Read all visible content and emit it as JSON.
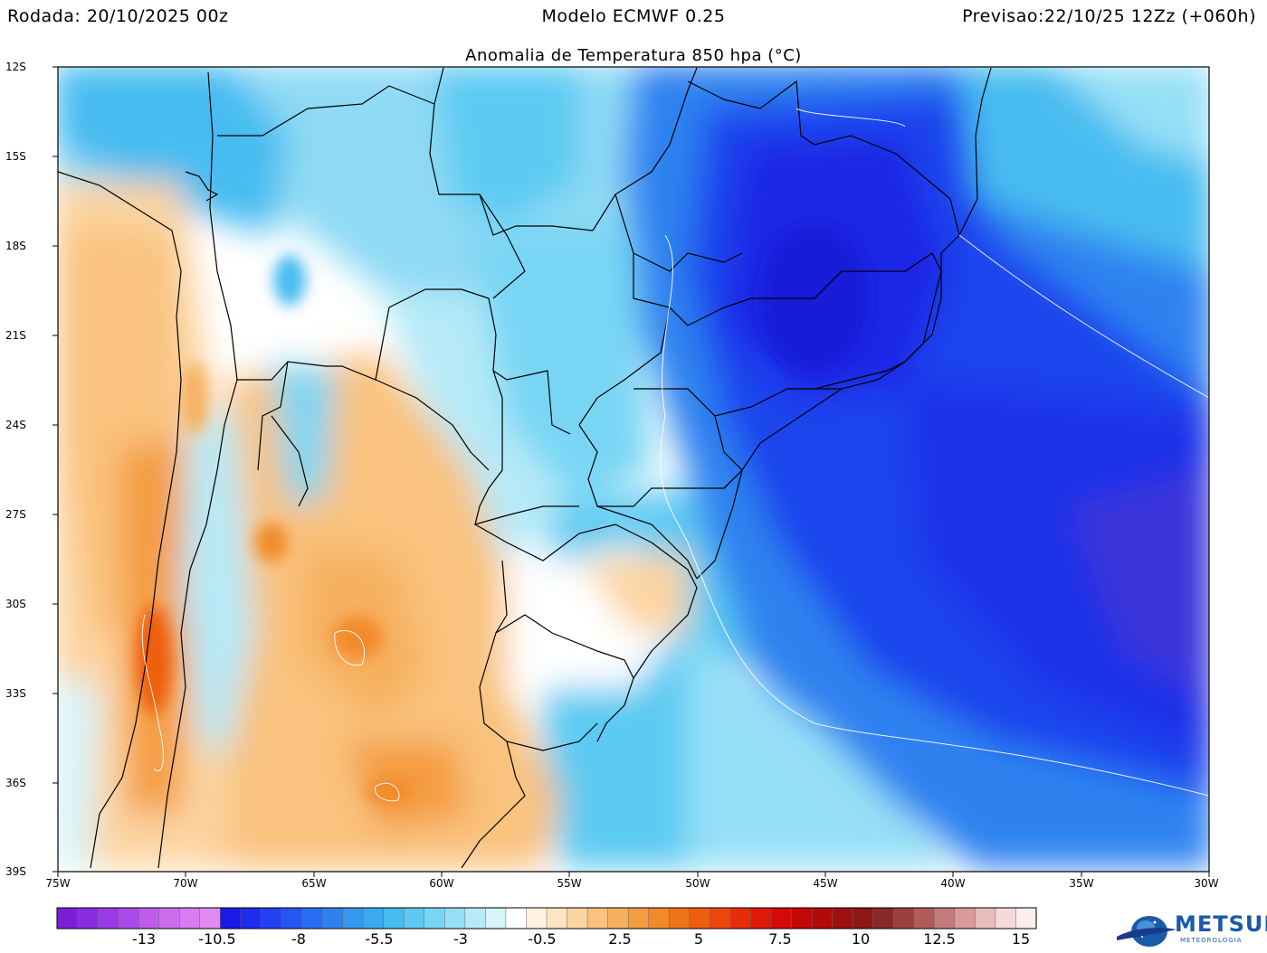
{
  "header": {
    "left": "Rodada: 20/10/2025 00z",
    "center": "Modelo ECMWF 0.25",
    "right": "Previsao:22/10/25 12Zz (+060h)"
  },
  "map": {
    "title": "Anomalia de Temperatura 850 hpa (°C)",
    "lat_labels": [
      "12S",
      "15S",
      "18S",
      "21S",
      "24S",
      "27S",
      "30S",
      "33S",
      "36S",
      "39S"
    ],
    "lon_labels": [
      "75W",
      "70W",
      "65W",
      "60W",
      "55W",
      "50W",
      "45W",
      "40W",
      "35W",
      "30W"
    ]
  },
  "colorbar": {
    "labels": [
      "-13",
      "-10.5",
      "-8",
      "-5.5",
      "-3",
      "-0.5",
      "2.5",
      "5",
      "7.5",
      "10",
      "12.5",
      "15"
    ],
    "colors": [
      "#7a1fd6",
      "#8a2ce0",
      "#9a3ae6",
      "#ab4aea",
      "#bd5cec",
      "#cc6cee",
      "#d87cf0",
      "#e08af2",
      "#1a1ae8",
      "#1e2cf0",
      "#2240f2",
      "#2656f2",
      "#2a6cf2",
      "#2e82f0",
      "#3498ee",
      "#3aaaee",
      "#46bcf0",
      "#5ccaf2",
      "#78d6f4",
      "#96e0f6",
      "#b6eaf8",
      "#d6f4fa",
      "#ffffff",
      "#fff2e2",
      "#ffe4c2",
      "#fcd4a0",
      "#f9c27e",
      "#f6b05e",
      "#f49c40",
      "#f28a2a",
      "#f07418",
      "#ee5e10",
      "#ec460c",
      "#e82c0a",
      "#e01808",
      "#d40a08",
      "#c40808",
      "#b20a0a",
      "#a01010",
      "#8e1818",
      "#8a2828",
      "#9a4040",
      "#b05a5a",
      "#c47a7a",
      "#d89a9a",
      "#e8bcbc",
      "#f4dada",
      "#fbeeee"
    ]
  },
  "brand": {
    "name": "METSUL",
    "subtitle": "METEOROLOGIA"
  }
}
